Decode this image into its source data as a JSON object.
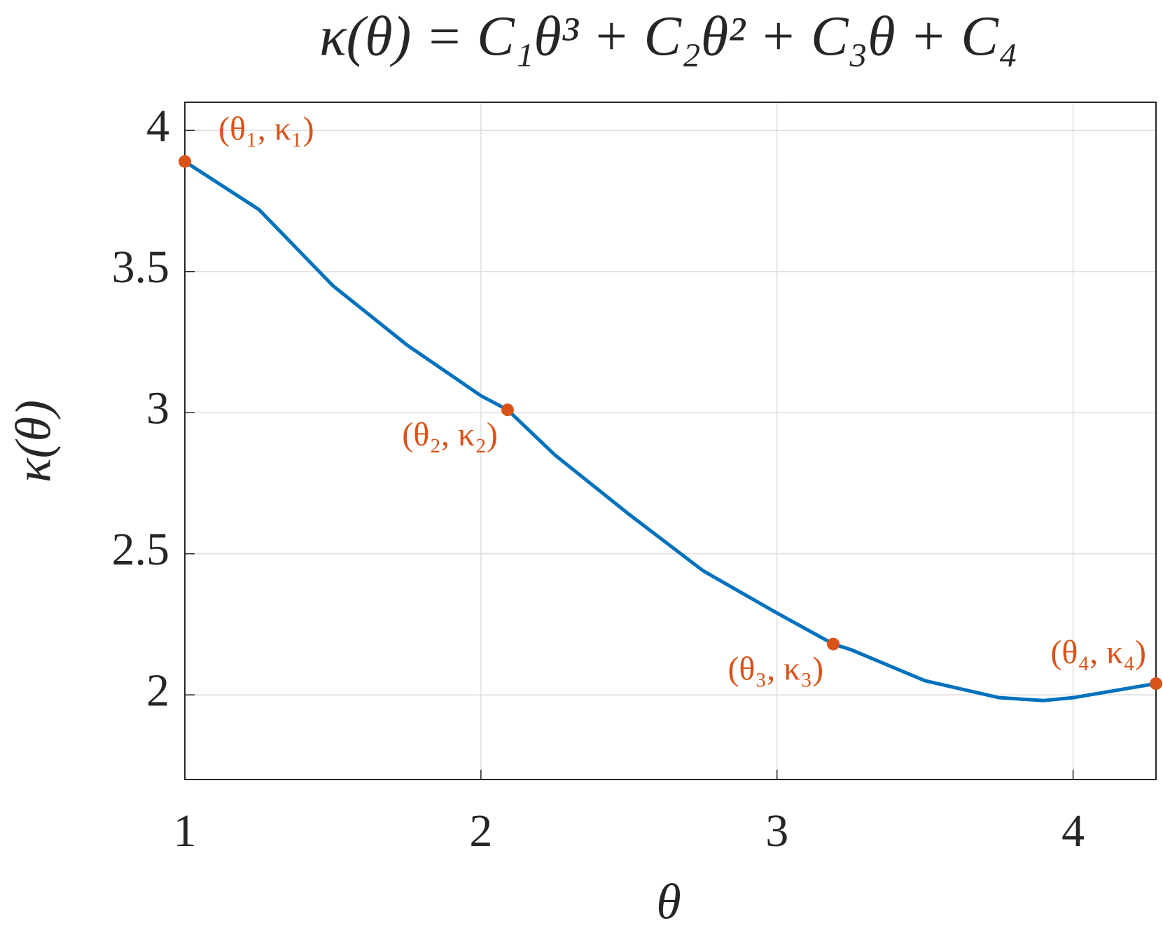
{
  "chart_data": {
    "type": "line",
    "title": "κ(θ) = C₁θ³ + C₂θ² + C₃θ + C₄",
    "x_label": "θ",
    "y_label": "κ(θ)",
    "xlim": [
      1,
      4.28
    ],
    "ylim": [
      1.7,
      4.1
    ],
    "xticks": [
      1,
      2,
      3,
      4
    ],
    "yticks": [
      2,
      2.5,
      3,
      3.5,
      4
    ],
    "grid": true,
    "line": {
      "color": "#0072bd",
      "x": [
        1,
        1.25,
        1.5,
        1.75,
        2,
        2.09,
        2.25,
        2.5,
        2.75,
        3,
        3.19,
        3.25,
        3.5,
        3.75,
        3.9,
        4,
        4.28
      ],
      "values": [
        3.89,
        3.72,
        3.45,
        3.24,
        3.06,
        3.01,
        2.85,
        2.64,
        2.44,
        2.29,
        2.18,
        2.16,
        2.05,
        1.99,
        1.98,
        1.99,
        2.04
      ]
    },
    "points": {
      "color": "#d95319",
      "x": [
        1,
        2.09,
        3.19,
        4.28
      ],
      "values": [
        3.89,
        3.01,
        2.18,
        2.04
      ],
      "labels": [
        "(θ₁, κ₁)",
        "(θ₂, κ₂)",
        "(θ₃, κ₃)",
        "(θ₄, κ₄)"
      ]
    }
  }
}
